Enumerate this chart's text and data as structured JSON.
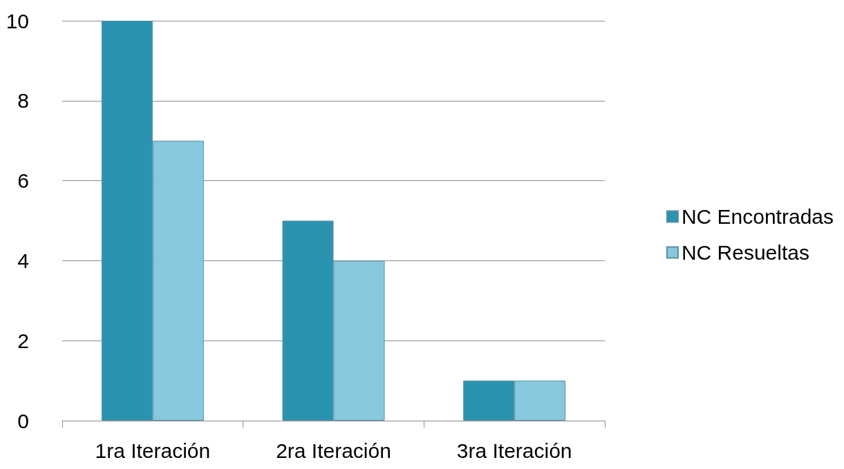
{
  "chart_data": {
    "type": "bar",
    "categories": [
      "1ra Iteración",
      "2ra Iteración",
      "3ra Iteración"
    ],
    "series": [
      {
        "name": "NC Encontradas",
        "color": "#2a93b0",
        "values": [
          10,
          5,
          1
        ]
      },
      {
        "name": "NC Resueltas",
        "color": "#88c8df",
        "values": [
          7,
          4,
          1
        ]
      }
    ],
    "ylim": [
      0,
      10
    ],
    "yticks": [
      0,
      2,
      4,
      6,
      8,
      10
    ],
    "grid": "y",
    "legend": "right"
  }
}
